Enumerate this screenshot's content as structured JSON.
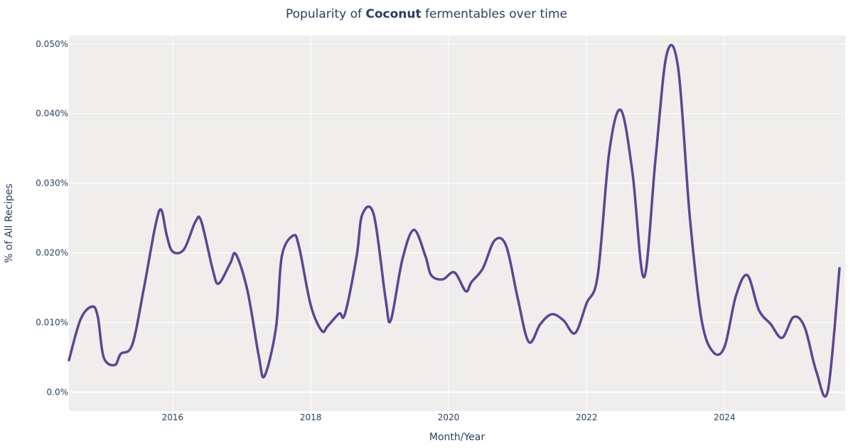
{
  "chart_data": {
    "type": "line",
    "title_prefix": "Popularity of ",
    "title_emphasis": "Coconut",
    "title_suffix": " fermentables over time",
    "xlabel": "Month/Year",
    "ylabel": "% of All Recipes",
    "xlim": [
      "2014-07-01",
      "2025-10-01"
    ],
    "ylim": [
      -0.0027,
      0.0512
    ],
    "x_ticks": [
      "2016-01-01",
      "2018-01-01",
      "2020-01-01",
      "2022-01-01",
      "2024-01-01"
    ],
    "x_tick_labels": [
      "2016",
      "2018",
      "2020",
      "2022",
      "2024"
    ],
    "y_ticks": [
      0.0,
      0.01,
      0.02,
      0.03,
      0.04,
      0.05
    ],
    "y_tick_labels": [
      "0.0%",
      "0.010%",
      "0.020%",
      "0.030%",
      "0.040%",
      "0.050%"
    ],
    "grid": true,
    "background": "#efeeed",
    "grid_color": "#ffffff",
    "line_color": "#5e4592",
    "series": [
      {
        "x": [
          "2014-07",
          "2014-09",
          "2014-11",
          "2014-12",
          "2015-01",
          "2015-03",
          "2015-04",
          "2015-06",
          "2015-08",
          "2015-10",
          "2015-11",
          "2015-12",
          "2016-01",
          "2016-03",
          "2016-05",
          "2016-06",
          "2016-08",
          "2016-09",
          "2016-11",
          "2016-12",
          "2017-02",
          "2017-04",
          "2017-05",
          "2017-07",
          "2017-08",
          "2017-10",
          "2017-11",
          "2018-01",
          "2018-03",
          "2018-04",
          "2018-06",
          "2018-07",
          "2018-09",
          "2018-10",
          "2018-12",
          "2019-02",
          "2019-03",
          "2019-05",
          "2019-07",
          "2019-09",
          "2019-10",
          "2019-12",
          "2020-02",
          "2020-04",
          "2020-05",
          "2020-07",
          "2020-09",
          "2020-11",
          "2021-01",
          "2021-03",
          "2021-05",
          "2021-07",
          "2021-09",
          "2021-11",
          "2022-01",
          "2022-03",
          "2022-05",
          "2022-07",
          "2022-09",
          "2022-11",
          "2023-01",
          "2023-03",
          "2023-05",
          "2023-07",
          "2023-09",
          "2023-11",
          "2024-01",
          "2024-03",
          "2024-05",
          "2024-07",
          "2024-09",
          "2024-11",
          "2025-01",
          "2025-03",
          "2025-05",
          "2025-07",
          "2025-09"
        ],
        "y": [
          0.0046,
          0.0105,
          0.0123,
          0.0108,
          0.005,
          0.0039,
          0.0055,
          0.0068,
          0.0148,
          0.0238,
          0.0262,
          0.0225,
          0.0202,
          0.0205,
          0.0245,
          0.0245,
          0.0175,
          0.0156,
          0.0185,
          0.0198,
          0.0145,
          0.0052,
          0.0023,
          0.0092,
          0.0195,
          0.0225,
          0.0208,
          0.0125,
          0.0088,
          0.0095,
          0.0113,
          0.0112,
          0.0195,
          0.0255,
          0.0255,
          0.0135,
          0.0103,
          0.019,
          0.0233,
          0.0195,
          0.0168,
          0.0162,
          0.0172,
          0.0145,
          0.0158,
          0.0178,
          0.0218,
          0.021,
          0.0135,
          0.0072,
          0.0098,
          0.0112,
          0.0103,
          0.0085,
          0.0128,
          0.0168,
          0.0345,
          0.0405,
          0.0315,
          0.0165,
          0.0335,
          0.0485,
          0.0465,
          0.0253,
          0.0105,
          0.0058,
          0.0065,
          0.0138,
          0.0168,
          0.0118,
          0.0098,
          0.0078,
          0.0108,
          0.0093,
          0.003,
          0.0002,
          0.0178
        ]
      }
    ]
  }
}
